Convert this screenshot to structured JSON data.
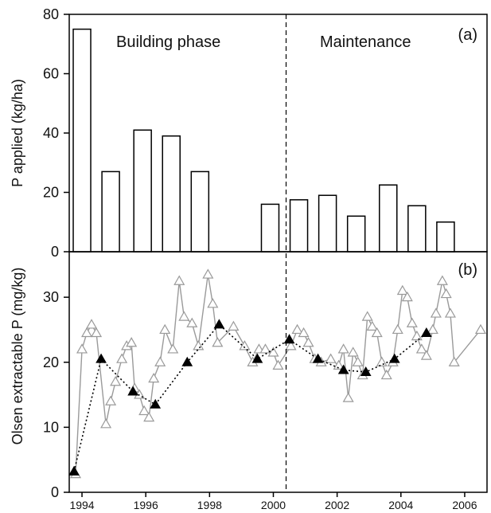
{
  "chart_data": [
    {
      "panel": "a",
      "type": "bar",
      "ylabel": "P applied (kg/ha)",
      "ylim": [
        0,
        80
      ],
      "yticks": [
        0,
        20,
        40,
        60,
        80
      ],
      "annotations": {
        "panel_label": "(a)",
        "phase_left": "Building phase",
        "phase_right": "Maintenance"
      },
      "bars": [
        {
          "x": 1994.0,
          "value": 75
        },
        {
          "x": 1994.9,
          "value": 27
        },
        {
          "x": 1995.9,
          "value": 41
        },
        {
          "x": 1996.8,
          "value": 39
        },
        {
          "x": 1997.7,
          "value": 27
        },
        {
          "x": 1999.9,
          "value": 16
        },
        {
          "x": 2000.8,
          "value": 17.5
        },
        {
          "x": 2001.7,
          "value": 19
        },
        {
          "x": 2002.6,
          "value": 12
        },
        {
          "x": 2003.6,
          "value": 22.5
        },
        {
          "x": 2004.5,
          "value": 15.5
        },
        {
          "x": 2005.4,
          "value": 10
        }
      ]
    },
    {
      "panel": "b",
      "type": "line",
      "ylabel": "Olsen extractable P (mg/kg)",
      "ylim": [
        0,
        37
      ],
      "yticks": [
        0,
        10,
        20,
        30
      ],
      "xticks": [
        "1994",
        "1996",
        "1998",
        "2000",
        "2002",
        "2004",
        "2006"
      ],
      "xtick_values": [
        1994,
        1996,
        1998,
        2000,
        2002,
        2004,
        2006
      ],
      "xlim": [
        1993.6,
        2006.7
      ],
      "annotations": {
        "panel_label": "(b)"
      },
      "phase_divider_x": 2000.4,
      "series": [
        {
          "style": "grey-open-triangles-solid",
          "points": [
            [
              1993.8,
              2.8
            ],
            [
              1994.0,
              22.0
            ],
            [
              1994.15,
              24.5
            ],
            [
              1994.3,
              25.8
            ],
            [
              1994.45,
              24.5
            ],
            [
              1994.75,
              10.5
            ],
            [
              1994.9,
              14.0
            ],
            [
              1995.05,
              17.0
            ],
            [
              1995.25,
              20.5
            ],
            [
              1995.4,
              22.5
            ],
            [
              1995.55,
              23.0
            ],
            [
              1995.65,
              16.0
            ],
            [
              1995.8,
              15.0
            ],
            [
              1995.95,
              12.5
            ],
            [
              1996.1,
              11.5
            ],
            [
              1996.25,
              17.5
            ],
            [
              1996.45,
              20.0
            ],
            [
              1996.6,
              25.0
            ],
            [
              1996.85,
              22.0
            ],
            [
              1997.05,
              32.5
            ],
            [
              1997.2,
              27.0
            ],
            [
              1997.45,
              26.0
            ],
            [
              1997.65,
              22.5
            ],
            [
              1997.95,
              33.5
            ],
            [
              1998.1,
              29.0
            ],
            [
              1998.25,
              23.0
            ],
            [
              1998.75,
              25.5
            ],
            [
              1999.1,
              22.5
            ],
            [
              1999.35,
              20.0
            ],
            [
              1999.55,
              22.0
            ],
            [
              1999.75,
              22.0
            ],
            [
              2000.0,
              21.5
            ],
            [
              2000.15,
              19.5
            ],
            [
              2000.55,
              22.5
            ],
            [
              2000.75,
              25.0
            ],
            [
              2000.95,
              24.5
            ],
            [
              2001.1,
              23.0
            ],
            [
              2001.3,
              20.5
            ],
            [
              2001.5,
              20.0
            ],
            [
              2001.8,
              20.5
            ],
            [
              2002.05,
              19.5
            ],
            [
              2002.2,
              22.0
            ],
            [
              2002.35,
              14.5
            ],
            [
              2002.5,
              21.5
            ],
            [
              2002.65,
              20.0
            ],
            [
              2002.8,
              18.0
            ],
            [
              2002.95,
              27.0
            ],
            [
              2003.1,
              25.5
            ],
            [
              2003.25,
              24.5
            ],
            [
              2003.4,
              20.0
            ],
            [
              2003.55,
              18.0
            ],
            [
              2003.75,
              20.0
            ],
            [
              2003.9,
              25.0
            ],
            [
              2004.05,
              31.0
            ],
            [
              2004.2,
              30.0
            ],
            [
              2004.35,
              26.0
            ],
            [
              2004.5,
              24.0
            ],
            [
              2004.65,
              22.0
            ],
            [
              2004.8,
              21.0
            ],
            [
              2005.0,
              25.0
            ],
            [
              2005.1,
              27.5
            ],
            [
              2005.3,
              32.5
            ],
            [
              2005.42,
              30.5
            ],
            [
              2005.55,
              27.5
            ],
            [
              2005.67,
              20.0
            ],
            [
              2006.5,
              25.0
            ]
          ]
        },
        {
          "style": "black-filled-triangles-dotted",
          "points": [
            [
              1993.75,
              3.2
            ],
            [
              1994.6,
              20.5
            ],
            [
              1995.6,
              15.5
            ],
            [
              1996.3,
              13.5
            ],
            [
              1997.3,
              20.0
            ],
            [
              1998.3,
              25.8
            ],
            [
              1999.5,
              20.5
            ],
            [
              2000.5,
              23.5
            ],
            [
              2001.4,
              20.5
            ],
            [
              2002.2,
              18.8
            ],
            [
              2002.9,
              18.5
            ],
            [
              2003.8,
              20.5
            ],
            [
              2004.8,
              24.5
            ]
          ]
        }
      ]
    }
  ]
}
